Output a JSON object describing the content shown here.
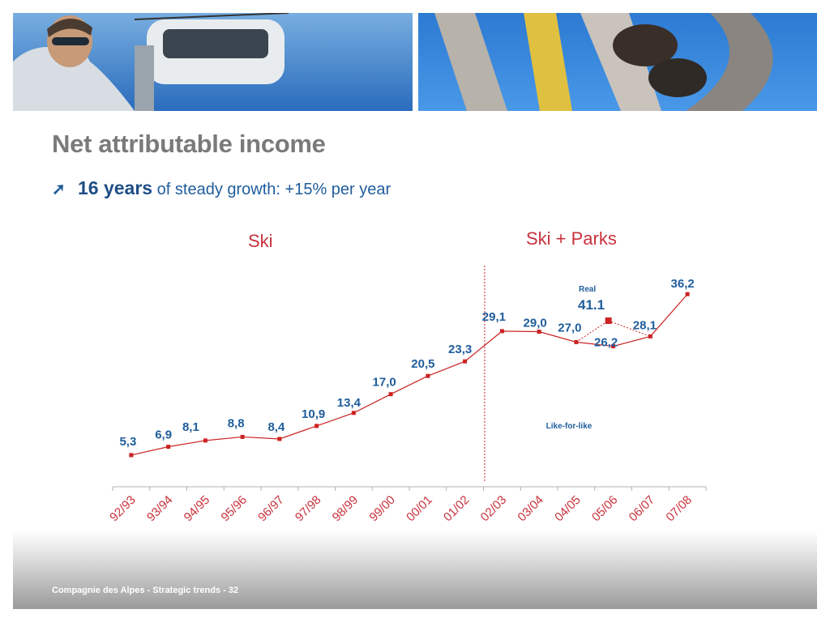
{
  "slide": {
    "title": "Net attributable income",
    "subtitle_bold": "16 years",
    "subtitle_rest": " of steady growth: +15% per year",
    "arrow_icon": "trend-up-arrow-icon",
    "footer": "Compagnie des Alpes - Strategic trends -  32",
    "images": [
      "skier-with-gondola-photo",
      "roller-coaster-riders-photo"
    ]
  },
  "chart_data": {
    "type": "line",
    "categories": [
      "92/93",
      "93/94",
      "94/95",
      "95/96",
      "96/97",
      "97/98",
      "98/99",
      "99/00",
      "00/01",
      "01/02",
      "02/03",
      "03/04",
      "04/05",
      "05/06",
      "06/07",
      "07/08"
    ],
    "series": [
      {
        "values": [
          5.3,
          6.9,
          8.1,
          8.8,
          8.4,
          10.9,
          13.4,
          17.0,
          20.5,
          23.3,
          29.1,
          29.0,
          27.0,
          26.2,
          28.1,
          36.2
        ]
      }
    ],
    "labels": [
      "5,3",
      "6,9",
      "8,1",
      "8,8",
      "8,4",
      "10,9",
      "13,4",
      "17,0",
      "20,5",
      "23,3",
      "29,1",
      "29,0",
      "27,0",
      "26,2",
      "28,1",
      "36,2"
    ],
    "real_point": {
      "category": "05/06",
      "value": 41.1,
      "label": "Real",
      "value_label": "41.1"
    },
    "annotations": {
      "like_for_like": "Like-for-like"
    },
    "sections": [
      {
        "label": "Ski",
        "from": "92/93",
        "to": "01/02"
      },
      {
        "label": "Ski + Parks",
        "from": "02/03",
        "to": "07/08"
      }
    ],
    "colors": {
      "line": "#cc2222",
      "labels": "#1f5d9c",
      "ticks": "#c8323c",
      "divider": "#cc2222"
    },
    "grid": false,
    "legend": "none"
  }
}
